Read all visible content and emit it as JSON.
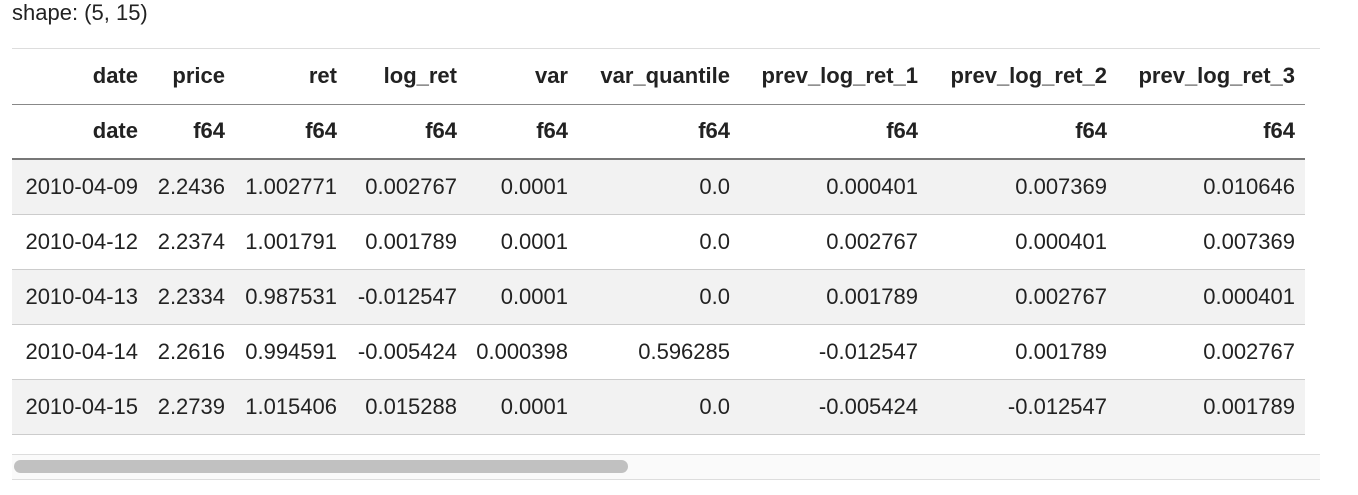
{
  "shape_label": "shape: (5, 15)",
  "table": {
    "columns": [
      "date",
      "price",
      "ret",
      "log_ret",
      "var",
      "var_quantile",
      "prev_log_ret_1",
      "prev_log_ret_2",
      "prev_log_ret_3"
    ],
    "dtypes": [
      "date",
      "f64",
      "f64",
      "f64",
      "f64",
      "f64",
      "f64",
      "f64",
      "f64"
    ],
    "rows": [
      [
        "2010-04-09",
        "2.2436",
        "1.002771",
        "0.002767",
        "0.0001",
        "0.0",
        "0.000401",
        "0.007369",
        "0.010646"
      ],
      [
        "2010-04-12",
        "2.2374",
        "1.001791",
        "0.001789",
        "0.0001",
        "0.0",
        "0.002767",
        "0.000401",
        "0.007369"
      ],
      [
        "2010-04-13",
        "2.2334",
        "0.987531",
        "-0.012547",
        "0.0001",
        "0.0",
        "0.001789",
        "0.002767",
        "0.000401"
      ],
      [
        "2010-04-14",
        "2.2616",
        "0.994591",
        "-0.005424",
        "0.000398",
        "0.596285",
        "-0.012547",
        "0.001789",
        "0.002767"
      ],
      [
        "2010-04-15",
        "2.2739",
        "1.015406",
        "0.015288",
        "0.0001",
        "0.0",
        "-0.005424",
        "-0.012547",
        "0.001789"
      ]
    ]
  }
}
